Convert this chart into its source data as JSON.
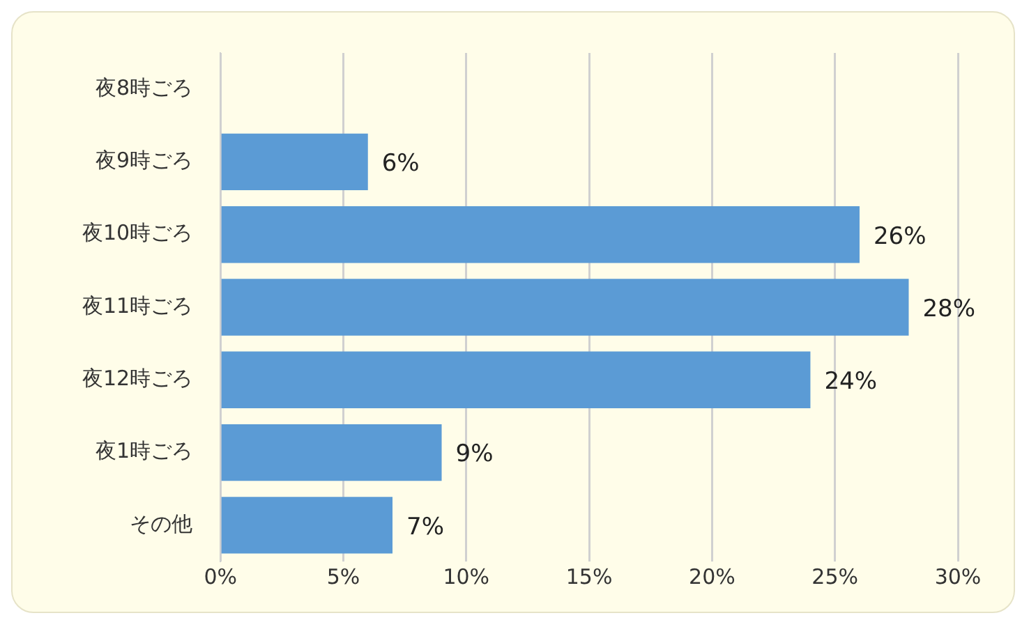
{
  "chart_data": {
    "type": "bar",
    "orientation": "horizontal",
    "categories": [
      "夜8時ごろ",
      "夜9時ごろ",
      "夜10時ごろ",
      "夜11時ごろ",
      "夜12時ごろ",
      "夜1時ごろ",
      "その他"
    ],
    "values": [
      0,
      6,
      26,
      28,
      24,
      9,
      7
    ],
    "value_labels": [
      null,
      "6%",
      "26%",
      "28%",
      "24%",
      "9%",
      "7%"
    ],
    "color": "#5b9bd5",
    "xlim": [
      0,
      30
    ],
    "xticks": [
      {
        "value": 0,
        "label": "0%"
      },
      {
        "value": 5,
        "label": "5%"
      },
      {
        "value": 10,
        "label": "10%"
      },
      {
        "value": 15,
        "label": "15%"
      },
      {
        "value": 20,
        "label": "20%"
      },
      {
        "value": 25,
        "label": "25%"
      },
      {
        "value": 30,
        "label": "30%"
      }
    ],
    "grid": "x",
    "legend": false
  }
}
